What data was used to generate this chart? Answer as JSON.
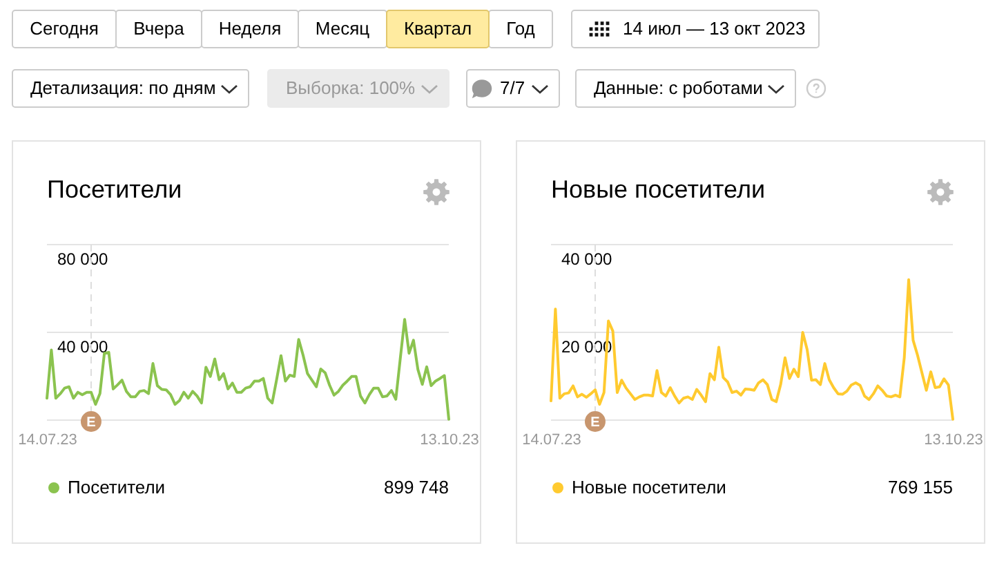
{
  "chart_data": [
    {
      "type": "other",
      "annotations": [
        "Сегодня",
        "Вчера",
        "Неделя",
        "Месяц",
        "Квартал",
        "Год",
        "14 июл — 13 окт 2023",
        "Детализация: по дням",
        "Выборка: 100%",
        "7/7",
        "Данные: с роботами"
      ]
    },
    {
      "type": "line",
      "title": "Посетители",
      "x": [
        "2023-07-14",
        "2023-07-15",
        "2023-07-16",
        "2023-07-17",
        "2023-07-18",
        "2023-07-19",
        "2023-07-20",
        "2023-07-21",
        "2023-07-22",
        "2023-07-23",
        "2023-07-24",
        "2023-07-25",
        "2023-07-26",
        "2023-07-27",
        "2023-07-28",
        "2023-07-29",
        "2023-07-30",
        "2023-07-31",
        "2023-08-01",
        "2023-08-02",
        "2023-08-03",
        "2023-08-04",
        "2023-08-05",
        "2023-08-06",
        "2023-08-07",
        "2023-08-08",
        "2023-08-09",
        "2023-08-10",
        "2023-08-11",
        "2023-08-12",
        "2023-08-13",
        "2023-08-14",
        "2023-08-15",
        "2023-08-16",
        "2023-08-17",
        "2023-08-18",
        "2023-08-19",
        "2023-08-20",
        "2023-08-21",
        "2023-08-22",
        "2023-08-23",
        "2023-08-24",
        "2023-08-25",
        "2023-08-26",
        "2023-08-27",
        "2023-08-28",
        "2023-08-29",
        "2023-08-30",
        "2023-08-31",
        "2023-09-01",
        "2023-09-02",
        "2023-09-03",
        "2023-09-04",
        "2023-09-05",
        "2023-09-06",
        "2023-09-07",
        "2023-09-08",
        "2023-09-09",
        "2023-09-10",
        "2023-09-11",
        "2023-09-12",
        "2023-09-13",
        "2023-09-14",
        "2023-09-15",
        "2023-09-16",
        "2023-09-17",
        "2023-09-18",
        "2023-09-19",
        "2023-09-20",
        "2023-09-21",
        "2023-09-22",
        "2023-09-23",
        "2023-09-24",
        "2023-09-25",
        "2023-09-26",
        "2023-09-27",
        "2023-09-28",
        "2023-09-29",
        "2023-09-30",
        "2023-10-01",
        "2023-10-02",
        "2023-10-03",
        "2023-10-04",
        "2023-10-05",
        "2023-10-06",
        "2023-10-07",
        "2023-10-08",
        "2023-10-09",
        "2023-10-10",
        "2023-10-11",
        "2023-10-12",
        "2023-10-13"
      ],
      "series": [
        {
          "name": "Посетители",
          "color": "#8bc34f",
          "values": [
            10000,
            32000,
            10000,
            12000,
            14600,
            15200,
            10000,
            12700,
            11600,
            12700,
            12700,
            7200,
            12100,
            30500,
            30900,
            14200,
            16100,
            18200,
            13100,
            10600,
            10600,
            13100,
            13500,
            12100,
            25800,
            15700,
            14000,
            13800,
            11600,
            7200,
            8900,
            12700,
            10000,
            13100,
            11000,
            7800,
            24100,
            19900,
            27900,
            18400,
            21200,
            14200,
            16900,
            12700,
            12700,
            14600,
            15200,
            17800,
            17800,
            19000,
            10000,
            7800,
            18400,
            29400,
            17800,
            20500,
            19900,
            36800,
            29600,
            21200,
            18200,
            15200,
            23300,
            21600,
            15900,
            11400,
            13100,
            15900,
            17800,
            19900,
            19900,
            11000,
            7800,
            11600,
            14600,
            14600,
            10600,
            11000,
            13500,
            9500,
            27900,
            45900,
            30500,
            36400,
            23100,
            16300,
            24300,
            15700,
            17800,
            19000,
            20300,
            400
          ]
        }
      ],
      "xlim": [
        "2023-07-14",
        "2023-10-13"
      ],
      "xticks": [
        {
          "value": "2023-07-14",
          "label": "14.07.23"
        },
        {
          "value": "2023-10-13",
          "label": "13.10.23"
        }
      ],
      "ylim": [
        0,
        80000
      ],
      "yticks": [
        {
          "value": 0,
          "label": null
        },
        {
          "value": 40000,
          "label": "40 000"
        },
        {
          "value": 80000,
          "label": "80 000"
        }
      ],
      "grid": "y",
      "legend": "bottom",
      "ref_lines": [
        {
          "axis": "x",
          "value": "2023-07-24",
          "label": "E",
          "color": "#dddddd",
          "line_style": "dashed"
        }
      ],
      "annotations": [
        "899 748"
      ]
    },
    {
      "type": "line",
      "title": "Новые посетители",
      "x": [
        "2023-07-14",
        "2023-07-15",
        "2023-07-16",
        "2023-07-17",
        "2023-07-18",
        "2023-07-19",
        "2023-07-20",
        "2023-07-21",
        "2023-07-22",
        "2023-07-23",
        "2023-07-24",
        "2023-07-25",
        "2023-07-26",
        "2023-07-27",
        "2023-07-28",
        "2023-07-29",
        "2023-07-30",
        "2023-07-31",
        "2023-08-01",
        "2023-08-02",
        "2023-08-03",
        "2023-08-04",
        "2023-08-05",
        "2023-08-06",
        "2023-08-07",
        "2023-08-08",
        "2023-08-09",
        "2023-08-10",
        "2023-08-11",
        "2023-08-12",
        "2023-08-13",
        "2023-08-14",
        "2023-08-15",
        "2023-08-16",
        "2023-08-17",
        "2023-08-18",
        "2023-08-19",
        "2023-08-20",
        "2023-08-21",
        "2023-08-22",
        "2023-08-23",
        "2023-08-24",
        "2023-08-25",
        "2023-08-26",
        "2023-08-27",
        "2023-08-28",
        "2023-08-29",
        "2023-08-30",
        "2023-08-31",
        "2023-09-01",
        "2023-09-02",
        "2023-09-03",
        "2023-09-04",
        "2023-09-05",
        "2023-09-06",
        "2023-09-07",
        "2023-09-08",
        "2023-09-09",
        "2023-09-10",
        "2023-09-11",
        "2023-09-12",
        "2023-09-13",
        "2023-09-14",
        "2023-09-15",
        "2023-09-16",
        "2023-09-17",
        "2023-09-18",
        "2023-09-19",
        "2023-09-20",
        "2023-09-21",
        "2023-09-22",
        "2023-09-23",
        "2023-09-24",
        "2023-09-25",
        "2023-09-26",
        "2023-09-27",
        "2023-09-28",
        "2023-09-29",
        "2023-09-30",
        "2023-10-01",
        "2023-10-02",
        "2023-10-03",
        "2023-10-04",
        "2023-10-05",
        "2023-10-06",
        "2023-10-07",
        "2023-10-08",
        "2023-10-09",
        "2023-10-10",
        "2023-10-11",
        "2023-10-12",
        "2023-10-13"
      ],
      "series": [
        {
          "name": "Новые посетители",
          "color": "#ffca2f",
          "values": [
            4400,
            25300,
            5000,
            6000,
            6200,
            7800,
            5300,
            5900,
            5200,
            6000,
            6900,
            3600,
            6300,
            22600,
            20300,
            6300,
            9100,
            7300,
            6000,
            4700,
            5300,
            5700,
            5700,
            5500,
            11300,
            6300,
            5500,
            7400,
            5500,
            3900,
            5000,
            5300,
            4700,
            7000,
            5700,
            4200,
            10600,
            9200,
            16600,
            9700,
            8700,
            6300,
            6600,
            5700,
            7100,
            7000,
            6800,
            8500,
            9200,
            8100,
            4700,
            4200,
            8100,
            14200,
            9500,
            11600,
            9900,
            20000,
            16100,
            9100,
            9200,
            8100,
            12900,
            9200,
            7400,
            6000,
            5900,
            6600,
            8000,
            8500,
            7900,
            5500,
            4700,
            6000,
            7800,
            6800,
            5500,
            5300,
            5700,
            5300,
            14200,
            32000,
            18200,
            14800,
            10800,
            6800,
            11000,
            7400,
            7600,
            9400,
            8000,
            200
          ]
        }
      ],
      "xlim": [
        "2023-07-14",
        "2023-10-13"
      ],
      "xticks": [
        {
          "value": "2023-07-14",
          "label": "14.07.23"
        },
        {
          "value": "2023-10-13",
          "label": "13.10.23"
        }
      ],
      "ylim": [
        0,
        40000
      ],
      "yticks": [
        {
          "value": 0,
          "label": null
        },
        {
          "value": 20000,
          "label": "20 000"
        },
        {
          "value": 40000,
          "label": "40 000"
        }
      ],
      "grid": "y",
      "legend": "bottom",
      "ref_lines": [
        {
          "axis": "x",
          "value": "2023-07-24",
          "label": "E",
          "color": "#dddddd",
          "line_style": "dashed"
        }
      ],
      "annotations": [
        "769 155"
      ]
    }
  ]
}
